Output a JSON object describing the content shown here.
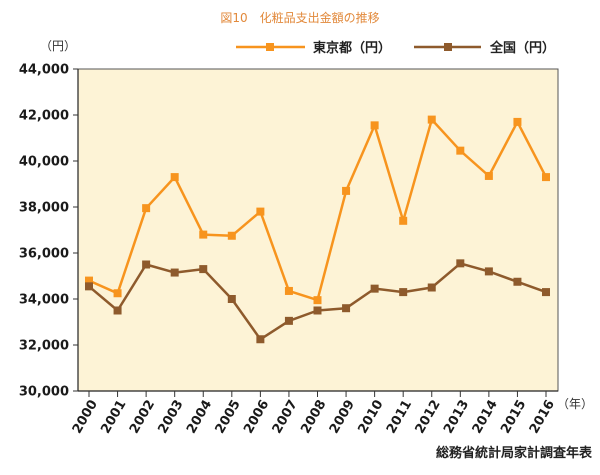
{
  "chart_data": {
    "type": "line",
    "title": "図10　化粧品支出金額の推移",
    "ylabel": "（円）",
    "xlabel": "（年）",
    "source": "総務省統計局家計調査年表",
    "x": [
      "2000",
      "2001",
      "2002",
      "2003",
      "2004",
      "2005",
      "2006",
      "2007",
      "2008",
      "2009",
      "2010",
      "2011",
      "2012",
      "2013",
      "2014",
      "2015",
      "2016"
    ],
    "ylim": [
      30000,
      44000
    ],
    "ytick_labels": [
      "30,000",
      "32,000",
      "34,000",
      "36,000",
      "38,000",
      "40,000",
      "42,000",
      "44,000"
    ],
    "grid": false,
    "legend": "top",
    "series": [
      {
        "name": "東京都（円）",
        "color": "#f7941e",
        "marker": "square",
        "values": [
          34800,
          34250,
          37950,
          39300,
          36800,
          36750,
          37800,
          34350,
          33950,
          38700,
          41550,
          37400,
          41800,
          40450,
          39350,
          41700,
          39300
        ]
      },
      {
        "name": "全国（円）",
        "color": "#8e5a2c",
        "marker": "square",
        "values": [
          34550,
          33500,
          35500,
          35150,
          35300,
          34000,
          32250,
          33050,
          33500,
          33600,
          34450,
          34300,
          34500,
          35550,
          35200,
          34750,
          34300
        ]
      }
    ]
  },
  "plot_background": "#fdf3d6"
}
